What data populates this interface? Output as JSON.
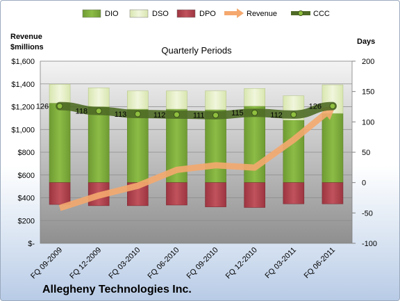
{
  "company": "Allegheny Technologies Inc.",
  "chart_data": {
    "type": "bar",
    "subtitle": "Quarterly Periods",
    "left_axis_title": [
      "Revenue",
      "$millions"
    ],
    "right_axis_title": "Days",
    "categories": [
      "FQ 09-2009",
      "FQ 12-2009",
      "FQ 03-2010",
      "FQ 06-2010",
      "FQ 09-2010",
      "FQ 12-2010",
      "FQ 03-2011",
      "FQ 06-2011"
    ],
    "left_ticks": [
      "$1,600",
      "$1,400",
      "$1,200",
      "$1,000",
      "$800",
      "$600",
      "$400",
      "$200",
      "$-"
    ],
    "right_ticks": [
      "200",
      "150",
      "100",
      "50",
      "0",
      "-50",
      "-100"
    ],
    "left_range": [
      0,
      1600
    ],
    "right_range": [
      -100,
      200
    ],
    "series": [
      {
        "name": "DIO",
        "axis": "right",
        "color": "#7aa93a",
        "values": [
          131,
          125,
          121,
          121,
          120,
          126,
          103,
          114
        ]
      },
      {
        "name": "DSO",
        "axis": "right",
        "color": "#e6efc8",
        "values": [
          31,
          31,
          30,
          30,
          31,
          29,
          40,
          47
        ]
      },
      {
        "name": "DPO",
        "axis": "right",
        "color": "#b2434d",
        "values": [
          -36,
          -38,
          -38,
          -37,
          -40,
          -41,
          -35,
          -35
        ]
      },
      {
        "name": "Revenue",
        "axis": "left",
        "color": "#f4a86e",
        "values": [
          310,
          420,
          505,
          645,
          685,
          665,
          910,
          1190
        ]
      },
      {
        "name": "CCC",
        "axis": "right",
        "color": "#5c7a2e",
        "values": [
          126,
          118,
          113,
          112,
          111,
          115,
          112,
          126
        ]
      }
    ],
    "grid": true,
    "legend_position": "top"
  }
}
